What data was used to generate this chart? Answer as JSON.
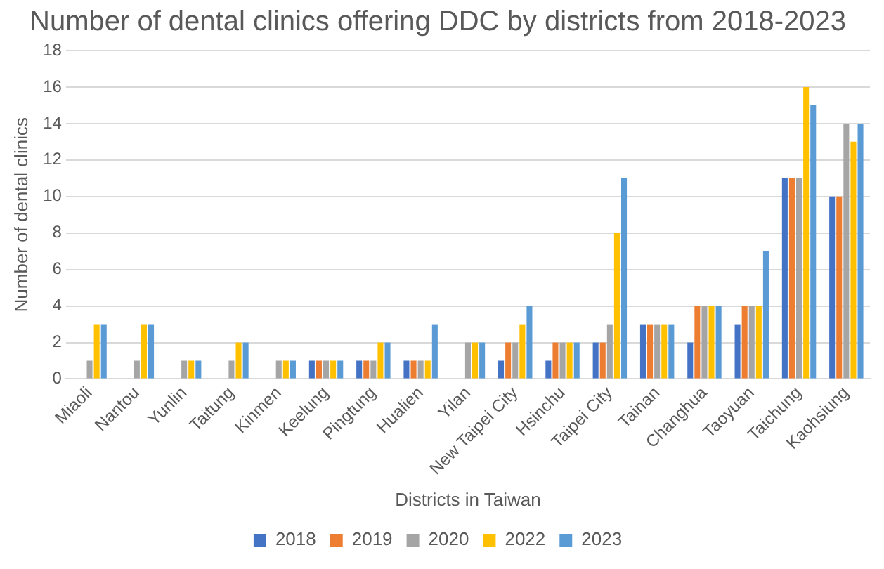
{
  "chart_data": {
    "type": "bar",
    "title": "Number of dental clinics offering DDC by districts from 2018-2023",
    "xlabel": "Districts in Taiwan",
    "ylabel": "Number of dental clinics",
    "categories": [
      "Miaoli",
      "Nantou",
      "Yunlin",
      "Taitung",
      "Kinmen",
      "Keelung",
      "Pingtung",
      "Hualien",
      "Yilan",
      "New Taipei City",
      "Hsinchu",
      "Taipei City",
      "Tainan",
      "Changhua",
      "Taoyuan",
      "Taichung",
      "Kaohsiung"
    ],
    "series": [
      {
        "name": "2018",
        "color": "#4472c4",
        "values": [
          0,
          0,
          0,
          0,
          0,
          1,
          1,
          1,
          0,
          1,
          1,
          2,
          3,
          2,
          3,
          11,
          10
        ]
      },
      {
        "name": "2019",
        "color": "#ed7d31",
        "values": [
          0,
          0,
          0,
          0,
          0,
          1,
          1,
          1,
          0,
          2,
          2,
          2,
          3,
          4,
          4,
          11,
          10
        ]
      },
      {
        "name": "2020",
        "color": "#a5a5a5",
        "values": [
          1,
          1,
          1,
          1,
          1,
          1,
          1,
          1,
          2,
          2,
          2,
          3,
          3,
          4,
          4,
          11,
          14
        ]
      },
      {
        "name": "2022",
        "color": "#ffc000",
        "values": [
          3,
          3,
          1,
          2,
          1,
          1,
          2,
          1,
          2,
          3,
          2,
          8,
          3,
          4,
          4,
          16,
          13
        ]
      },
      {
        "name": "2023",
        "color": "#5b9bd5",
        "values": [
          3,
          3,
          1,
          2,
          1,
          1,
          2,
          3,
          2,
          4,
          2,
          11,
          3,
          4,
          7,
          15,
          14
        ]
      }
    ],
    "ylim": [
      0,
      18
    ],
    "yticks": [
      0,
      2,
      4,
      6,
      8,
      10,
      12,
      14,
      16,
      18
    ],
    "grid": "y",
    "legend": "bottom"
  }
}
